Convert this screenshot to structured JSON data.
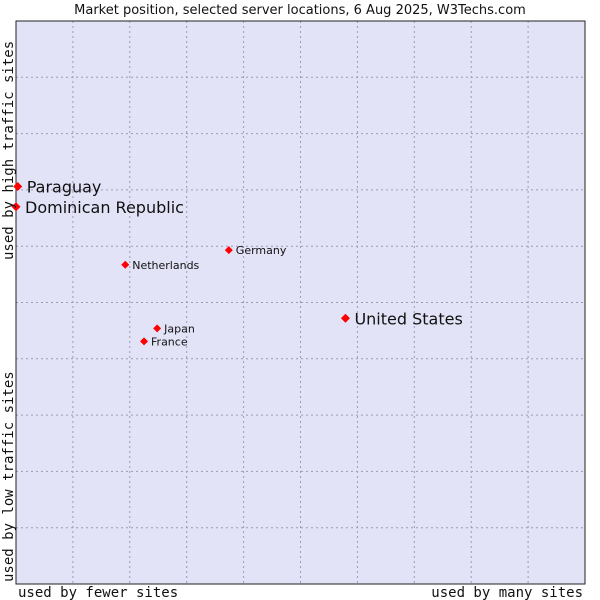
{
  "chart_data": {
    "type": "scatter",
    "title": "Market position, selected server locations, 6 Aug 2025, W3Techs.com",
    "xlabel_left": "used by fewer sites",
    "xlabel_right": "used by many sites",
    "ylabel_top": "used by high traffic sites",
    "ylabel_bottom": "used by low traffic sites",
    "xlim": [
      0,
      100
    ],
    "ylim": [
      0,
      100
    ],
    "grid": true,
    "colors": {
      "plot_bg": "#e3e3f8",
      "point": "#ff0000",
      "grid": "#9a9ab8",
      "frame": "#222222"
    },
    "points": [
      {
        "label": "Paraguay",
        "x": 0.3,
        "y": 70.6,
        "size": "large"
      },
      {
        "label": "Dominican Republic",
        "x": 0.0,
        "y": 67.0,
        "size": "large"
      },
      {
        "label": "Germany",
        "x": 37.4,
        "y": 59.3,
        "size": "small"
      },
      {
        "label": "Netherlands",
        "x": 19.2,
        "y": 56.7,
        "size": "small"
      },
      {
        "label": "United States",
        "x": 57.9,
        "y": 47.2,
        "size": "large"
      },
      {
        "label": "Japan",
        "x": 24.8,
        "y": 45.4,
        "size": "small"
      },
      {
        "label": "France",
        "x": 22.5,
        "y": 43.1,
        "size": "small"
      }
    ]
  }
}
